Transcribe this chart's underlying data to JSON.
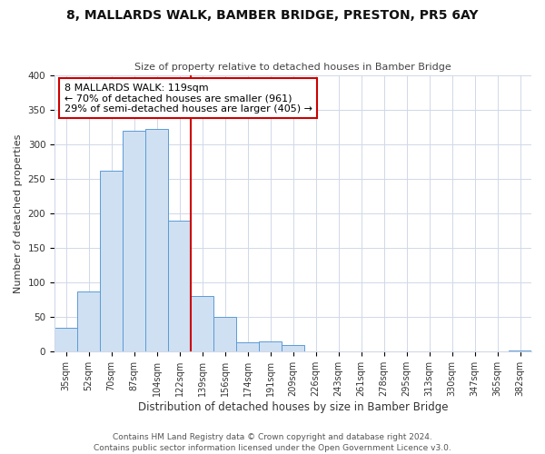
{
  "title": "8, MALLARDS WALK, BAMBER BRIDGE, PRESTON, PR5 6AY",
  "subtitle": "Size of property relative to detached houses in Bamber Bridge",
  "xlabel": "Distribution of detached houses by size in Bamber Bridge",
  "ylabel": "Number of detached properties",
  "bar_labels": [
    "35sqm",
    "52sqm",
    "70sqm",
    "87sqm",
    "104sqm",
    "122sqm",
    "139sqm",
    "156sqm",
    "174sqm",
    "191sqm",
    "209sqm",
    "226sqm",
    "243sqm",
    "261sqm",
    "278sqm",
    "295sqm",
    "313sqm",
    "330sqm",
    "347sqm",
    "365sqm",
    "382sqm"
  ],
  "bar_values": [
    35,
    87,
    261,
    320,
    322,
    190,
    80,
    50,
    14,
    15,
    9,
    1,
    0,
    0,
    0,
    0,
    0,
    0,
    0,
    0,
    2
  ],
  "bar_color": "#cfe0f3",
  "bar_edge_color": "#5b9bd5",
  "vline_color": "#cc0000",
  "vline_index": 5,
  "annotation_lines": [
    "8 MALLARDS WALK: 119sqm",
    "← 70% of detached houses are smaller (961)",
    "29% of semi-detached houses are larger (405) →"
  ],
  "annotation_box_color": "#cc0000",
  "ylim": [
    0,
    400
  ],
  "yticks": [
    0,
    50,
    100,
    150,
    200,
    250,
    300,
    350,
    400
  ],
  "footer_line1": "Contains HM Land Registry data © Crown copyright and database right 2024.",
  "footer_line2": "Contains public sector information licensed under the Open Government Licence v3.0.",
  "bg_color": "#ffffff",
  "grid_color": "#d0d8e8",
  "title_fontsize": 10,
  "subtitle_fontsize": 8,
  "ylabel_fontsize": 8,
  "xlabel_fontsize": 8.5,
  "tick_fontsize": 7,
  "annotation_fontsize": 8,
  "footer_fontsize": 6.5
}
